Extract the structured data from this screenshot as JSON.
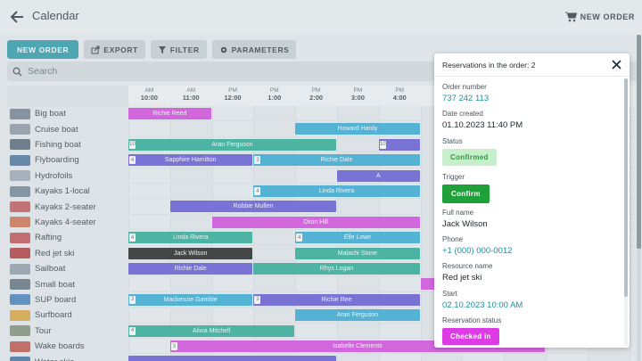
{
  "header": {
    "title": "Calendar",
    "new_order": "NEW ORDER"
  },
  "toolbar": {
    "new_order": "NEW ORDER",
    "export": "EXPORT",
    "filter": "FILTER",
    "parameters": "PARAMETERS"
  },
  "search": {
    "placeholder": "Search"
  },
  "times": [
    {
      "ampm": "AM",
      "time": "10:00"
    },
    {
      "ampm": "AM",
      "time": "11:00"
    },
    {
      "ampm": "PM",
      "time": "12:00"
    },
    {
      "ampm": "PM",
      "time": "1:00"
    },
    {
      "ampm": "PM",
      "time": "2:00"
    },
    {
      "ampm": "PM",
      "time": "3:00"
    },
    {
      "ampm": "PM",
      "time": "4:00"
    }
  ],
  "resources": [
    {
      "name": "Big boat",
      "thumb": "#6b7a8a",
      "bars": [
        {
          "s": 0,
          "e": 2,
          "c": "#d63ee0",
          "t": "Richie Reed"
        }
      ]
    },
    {
      "name": "Cruise boat",
      "thumb": "#8794a0",
      "bars": [
        {
          "s": 4,
          "e": 7,
          "c": "#28a7d4",
          "t": "Howard Hardy"
        }
      ]
    },
    {
      "name": "Fishing boat",
      "thumb": "#4d6070",
      "bars": [
        {
          "s": 0,
          "e": 5,
          "c": "#1ea88e",
          "t": "Aran Ferguson",
          "n": "10"
        },
        {
          "s": 6,
          "e": 7,
          "c": "#5a4fd4",
          "t": "",
          "n": "10"
        }
      ]
    },
    {
      "name": "Flyboarding",
      "thumb": "#3f6e9a",
      "bars": [
        {
          "s": 0,
          "e": 3,
          "c": "#5a4fd4",
          "t": "Sapphire Hamilton",
          "n": "4"
        },
        {
          "s": 3,
          "e": 7,
          "c": "#28a7d4",
          "t": "Richie Dale",
          "n": "3"
        }
      ]
    },
    {
      "name": "Hydrofoils",
      "thumb": "#9aa6b0",
      "bars": [
        {
          "s": 5,
          "e": 7,
          "c": "#5a4fd4",
          "t": "A"
        }
      ]
    },
    {
      "name": "Kayaks 1-local",
      "thumb": "#6a8090",
      "bars": [
        {
          "s": 3,
          "e": 7,
          "c": "#28a7d4",
          "t": "Linda Rivera",
          "n": "4"
        }
      ]
    },
    {
      "name": "Kayaks 2-seater",
      "thumb": "#c05050",
      "bars": [
        {
          "s": 1,
          "e": 5,
          "c": "#5a4fd4",
          "t": "Robbie Mullen"
        }
      ]
    },
    {
      "name": "Kayaks 4-seater",
      "thumb": "#d06a40",
      "bars": [
        {
          "s": 2,
          "e": 7,
          "c": "#d63ee0",
          "t": "Oisin Hill"
        }
      ]
    },
    {
      "name": "Rafting",
      "thumb": "#c04848",
      "bars": [
        {
          "s": 0,
          "e": 3,
          "c": "#1ea88e",
          "t": "Linda Rivera",
          "n": "4"
        },
        {
          "s": 4,
          "e": 7,
          "c": "#28a7d4",
          "t": "Elle Lowe",
          "n": "4"
        }
      ]
    },
    {
      "name": "Red jet ski",
      "thumb": "#b03030",
      "bars": [
        {
          "s": 0,
          "e": 3,
          "c": "#111111",
          "t": "Jack Wilson"
        },
        {
          "s": 4,
          "e": 7,
          "c": "#1ea88e",
          "t": "Malachi Stone"
        }
      ]
    },
    {
      "name": "Sailboat",
      "thumb": "#8b9aa6",
      "bars": [
        {
          "s": 0,
          "e": 3,
          "c": "#5a4fd4",
          "t": "Richie Dale"
        },
        {
          "s": 3,
          "e": 7,
          "c": "#1ea88e",
          "t": "Rhys Logan"
        }
      ]
    },
    {
      "name": "Small boat",
      "thumb": "#5a6b78",
      "bars": [
        {
          "s": 7,
          "e": 7.4,
          "c": "#d63ee0",
          "t": ""
        }
      ]
    },
    {
      "name": "SUP board",
      "thumb": "#3a7ab8",
      "bars": [
        {
          "s": 0,
          "e": 3,
          "c": "#28a7d4",
          "t": "Mackenzie Gamble",
          "n": "3"
        },
        {
          "s": 3,
          "e": 7,
          "c": "#5a4fd4",
          "t": "Richie Ree",
          "n": "3"
        }
      ]
    },
    {
      "name": "Surfboard",
      "thumb": "#d8a030",
      "bars": [
        {
          "s": 4,
          "e": 7,
          "c": "#28a7d4",
          "t": "Aran Ferguson"
        }
      ]
    },
    {
      "name": "Tour",
      "thumb": "#7a8a70",
      "bars": [
        {
          "s": 0,
          "e": 4,
          "c": "#1ea88e",
          "t": "Alivia Mitchell",
          "n": "4"
        }
      ]
    },
    {
      "name": "Wake boards",
      "thumb": "#c04a40",
      "bars": [
        {
          "s": 1,
          "e": 10,
          "c": "#d63ee0",
          "t": "Isabelle Clements",
          "n": "3"
        }
      ]
    },
    {
      "name": "Water skis",
      "thumb": "#3a6a9a",
      "bars": [
        {
          "s": 0,
          "e": 5,
          "c": "#5a4fd4",
          "t": ""
        }
      ]
    }
  ],
  "panel": {
    "title": "Reservations in the order: 2",
    "order_number_label": "Order number",
    "order_number": "737 242 113",
    "date_created_label": "Date created",
    "date_created": "01.10.2023 11:40 PM",
    "status_label": "Status",
    "status": "Confirmed",
    "trigger_label": "Trigger",
    "trigger": "Confirm",
    "full_name_label": "Full name",
    "full_name": "Jack Wilson",
    "phone_label": "Phone",
    "phone": "+1 (000) 000-0012",
    "resource_name_label": "Resource name",
    "resource_name": "Red jet ski",
    "start_label": "Start",
    "start": "02.10.2023 10:00 AM",
    "reservation_status_label": "Reservation status",
    "reservation_status": "Checked in"
  },
  "colors": {
    "accent": "#1f96a4",
    "confirm_green": "#1fa13a",
    "checked_in": "#dd3be6",
    "link": "#1e8fa0"
  }
}
